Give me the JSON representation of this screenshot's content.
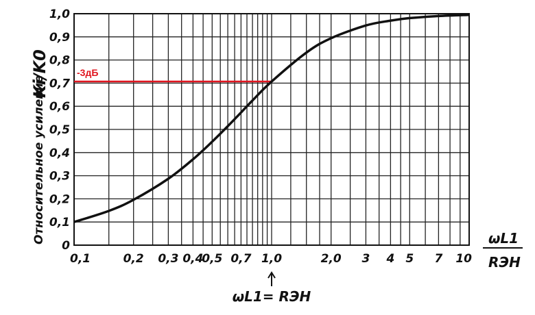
{
  "chart_data": {
    "type": "line",
    "xscale": "log",
    "xlim": [
      0.1,
      10
    ],
    "ylim": [
      0,
      1.0
    ],
    "grid": true,
    "x_ticks": [
      {
        "v": 0.1,
        "label": "0,1"
      },
      {
        "v": 0.2,
        "label": "0,2"
      },
      {
        "v": 0.3,
        "label": "0,3"
      },
      {
        "v": 0.4,
        "label": "0,4"
      },
      {
        "v": 0.5,
        "label": "0,5"
      },
      {
        "v": 0.7,
        "label": "0,7"
      },
      {
        "v": 1.0,
        "label": "1,0"
      },
      {
        "v": 2.0,
        "label": "2,0"
      },
      {
        "v": 3,
        "label": "3"
      },
      {
        "v": 4,
        "label": "4"
      },
      {
        "v": 5,
        "label": "5"
      },
      {
        "v": 7,
        "label": "7"
      },
      {
        "v": 10,
        "label": "10"
      }
    ],
    "y_ticks": [
      {
        "v": 0,
        "label": "0"
      },
      {
        "v": 0.1,
        "label": "0,1"
      },
      {
        "v": 0.2,
        "label": "0,2"
      },
      {
        "v": 0.3,
        "label": "0,3"
      },
      {
        "v": 0.4,
        "label": "0,4"
      },
      {
        "v": 0.5,
        "label": "0,5"
      },
      {
        "v": 0.6,
        "label": "0,6"
      },
      {
        "v": 0.7,
        "label": "0,7"
      },
      {
        "v": 0.8,
        "label": "0,8"
      },
      {
        "v": 0.9,
        "label": "0,9"
      },
      {
        "v": 1.0,
        "label": "1,0"
      }
    ],
    "x": [
      0.1,
      0.15,
      0.2,
      0.3,
      0.4,
      0.5,
      0.6,
      0.7,
      0.8,
      1.0,
      1.5,
      2.0,
      3,
      4,
      5,
      7,
      10
    ],
    "y": [
      0.1,
      0.148,
      0.196,
      0.287,
      0.371,
      0.447,
      0.514,
      0.573,
      0.625,
      0.707,
      0.832,
      0.894,
      0.949,
      0.97,
      0.981,
      0.99,
      0.995
    ],
    "ylabel": "Относительное усиление",
    "ylabel_symbol": "Ki/K0",
    "xlabel_num": "ωL1",
    "xlabel_den": "RЭН",
    "annotation_label": "-3дБ",
    "annotation_y": 0.707,
    "annotation_x": 1.0,
    "annotation_color": "#e0141e",
    "marker_text": "ωL1= RЭН",
    "curve_color": "#111111"
  }
}
